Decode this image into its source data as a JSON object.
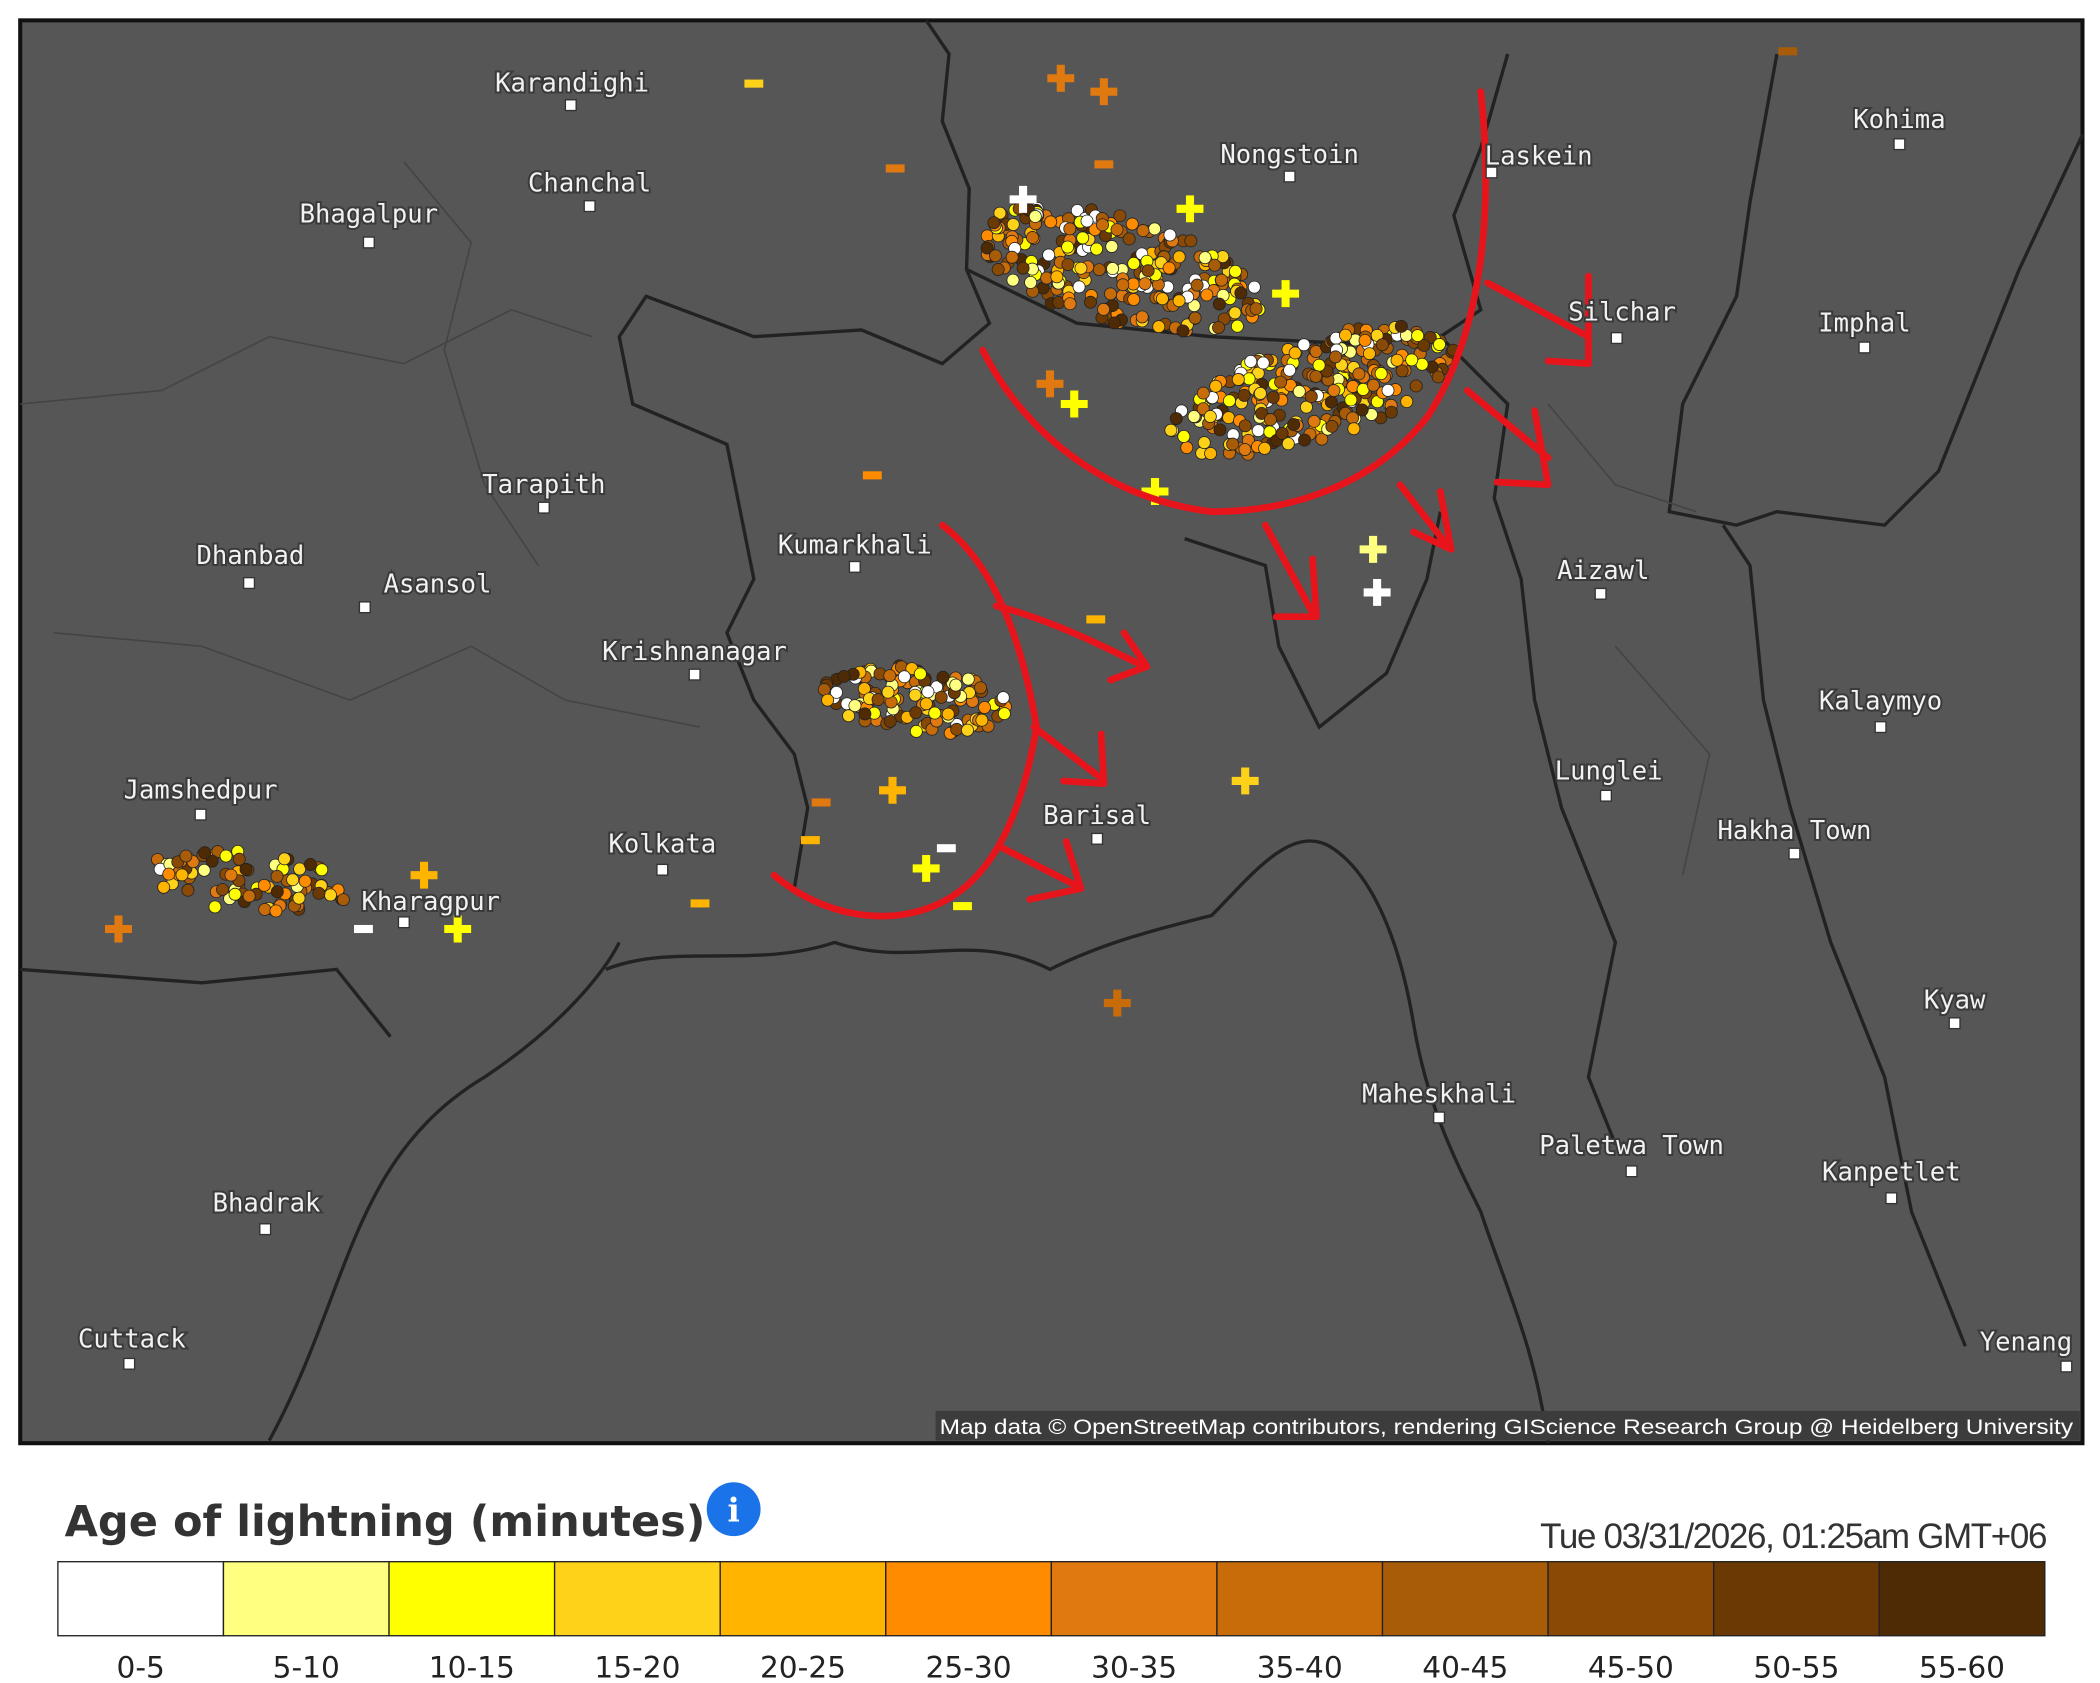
{
  "map": {
    "places": [
      "Karandighi",
      "Chanchal",
      "Bhagalpur",
      "Tarapith",
      "Dhanbad",
      "Asansol",
      "Kumarkhali",
      "Krishnanagar",
      "Jamshedpur",
      "Kolkata",
      "Kharagpur",
      "Bhadrak",
      "Cuttack",
      "Nongstoin",
      "Laskein",
      "Silchar",
      "Imphal",
      "Kohima",
      "Aizawl",
      "Kalaymyo",
      "Lunglei",
      "Hakha Town",
      "Barisal",
      "Kyaw",
      "Maheskhali",
      "Paletwa Town",
      "Kanpetlet",
      "Yenang"
    ],
    "attribution": "Map data © OpenStreetMap contributors, rendering GIScience Research Group @ Heidelberg University"
  },
  "legend": {
    "title": "Age of lightning (minutes)",
    "info_icon": "i",
    "timestamp": "Tue 03/31/2026, 01:25am GMT+06",
    "bins": [
      {
        "label": "0-5",
        "color": "#ffffff"
      },
      {
        "label": "5-10",
        "color": "#ffff80"
      },
      {
        "label": "10-15",
        "color": "#ffff00"
      },
      {
        "label": "15-20",
        "color": "#ffd21a"
      },
      {
        "label": "20-25",
        "color": "#ffb400"
      },
      {
        "label": "25-30",
        "color": "#ff8c00"
      },
      {
        "label": "30-35",
        "color": "#e07a10"
      },
      {
        "label": "35-40",
        "color": "#c86c0a"
      },
      {
        "label": "40-45",
        "color": "#a85c08"
      },
      {
        "label": "45-50",
        "color": "#8a4a06"
      },
      {
        "label": "50-55",
        "color": "#6a3904"
      },
      {
        "label": "55-60",
        "color": "#4e2a05"
      }
    ]
  }
}
